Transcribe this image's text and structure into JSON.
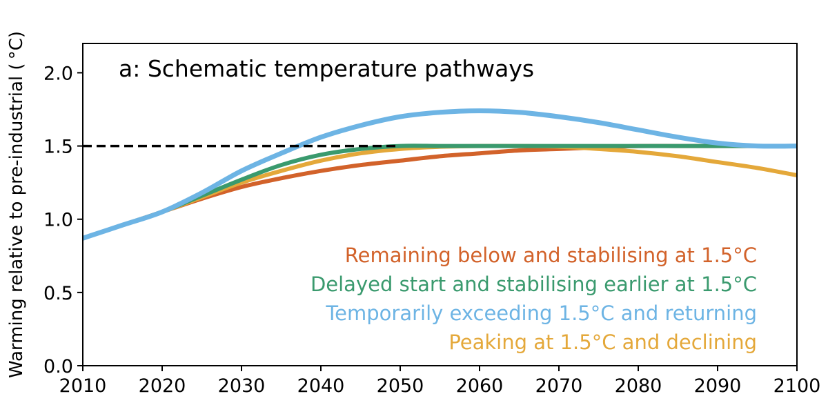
{
  "chart_data": {
    "type": "line",
    "title": "a: Schematic temperature pathways",
    "xlabel": "",
    "ylabel": "Warming relative to pre-industrial ( °C)",
    "xlim": [
      2010,
      2100
    ],
    "ylim": [
      0,
      2.2
    ],
    "xticks": [
      "2010",
      "2020",
      "2030",
      "2040",
      "2050",
      "2060",
      "2070",
      "2080",
      "2090",
      "2100"
    ],
    "yticks": [
      "0.0",
      "0.5",
      "1.0",
      "1.5",
      "2.0"
    ],
    "grid": false,
    "legend_position": "bottom-right",
    "reference_line": {
      "y": 1.5,
      "x_range": [
        2010,
        2050
      ],
      "style": "dashed",
      "color": "#000000"
    },
    "x": [
      2010,
      2015,
      2020,
      2025,
      2030,
      2035,
      2040,
      2045,
      2050,
      2055,
      2060,
      2065,
      2070,
      2075,
      2080,
      2085,
      2090,
      2095,
      2100
    ],
    "series": [
      {
        "name": "Remaining below and stabilising at 1.5°C",
        "color": "#d2622a",
        "values": [
          0.87,
          0.96,
          1.05,
          1.14,
          1.22,
          1.28,
          1.33,
          1.37,
          1.4,
          1.43,
          1.45,
          1.47,
          1.48,
          1.49,
          1.5,
          1.5,
          1.5,
          1.5,
          1.5
        ]
      },
      {
        "name": "Delayed start and stabilising earlier at 1.5°C",
        "color": "#3a9a6e",
        "values": [
          0.87,
          0.96,
          1.05,
          1.16,
          1.27,
          1.37,
          1.44,
          1.48,
          1.5,
          1.5,
          1.5,
          1.5,
          1.5,
          1.5,
          1.5,
          1.5,
          1.5,
          1.5,
          1.5
        ]
      },
      {
        "name": "Temporarily exceeding 1.5°C and returning",
        "color": "#6db4e4",
        "values": [
          0.87,
          0.96,
          1.05,
          1.18,
          1.33,
          1.45,
          1.56,
          1.64,
          1.7,
          1.73,
          1.74,
          1.73,
          1.7,
          1.66,
          1.61,
          1.56,
          1.52,
          1.5,
          1.5
        ]
      },
      {
        "name": "Peaking at 1.5°C and declining",
        "color": "#e4a83a",
        "values": [
          0.87,
          0.96,
          1.05,
          1.15,
          1.25,
          1.33,
          1.4,
          1.45,
          1.48,
          1.495,
          1.5,
          1.5,
          1.495,
          1.48,
          1.46,
          1.43,
          1.39,
          1.35,
          1.3
        ]
      }
    ]
  }
}
